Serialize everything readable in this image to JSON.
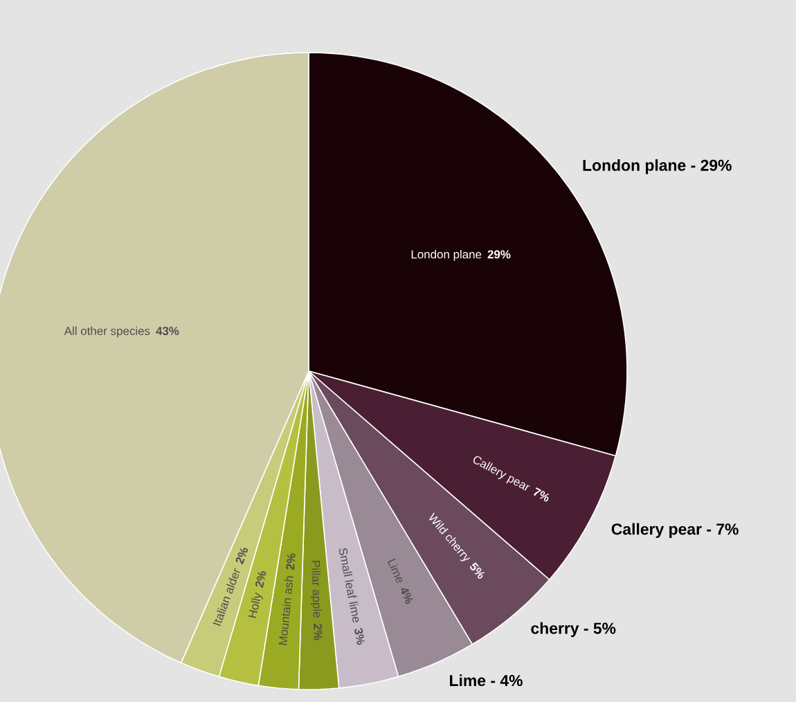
{
  "chart_data": {
    "type": "pie",
    "categories": [
      "London plane",
      "Callery pear",
      "Wild cherry",
      "Lime",
      "Small leaf lime",
      "Pillar apple",
      "Mountain ash",
      "Holly",
      "Italian alder",
      "All other species"
    ],
    "values": [
      29,
      7,
      5,
      4,
      3,
      2,
      2,
      2,
      2,
      43
    ],
    "value_labels": [
      "29%",
      "7%",
      "5%",
      "4%",
      "3%",
      "2%",
      "2%",
      "2%",
      "2%",
      "43%"
    ],
    "colors": [
      "#1a0306",
      "#4a1f33",
      "#6b4a5e",
      "#9a8a96",
      "#c8bcc8",
      "#8a9a1e",
      "#9aaa22",
      "#b5c040",
      "#c6cc7a",
      "#cfcca8"
    ],
    "annotations": [
      "London plane - 29%",
      "Callery pear - 7%",
      "cherry - 5%",
      "Lime - 4%"
    ]
  }
}
